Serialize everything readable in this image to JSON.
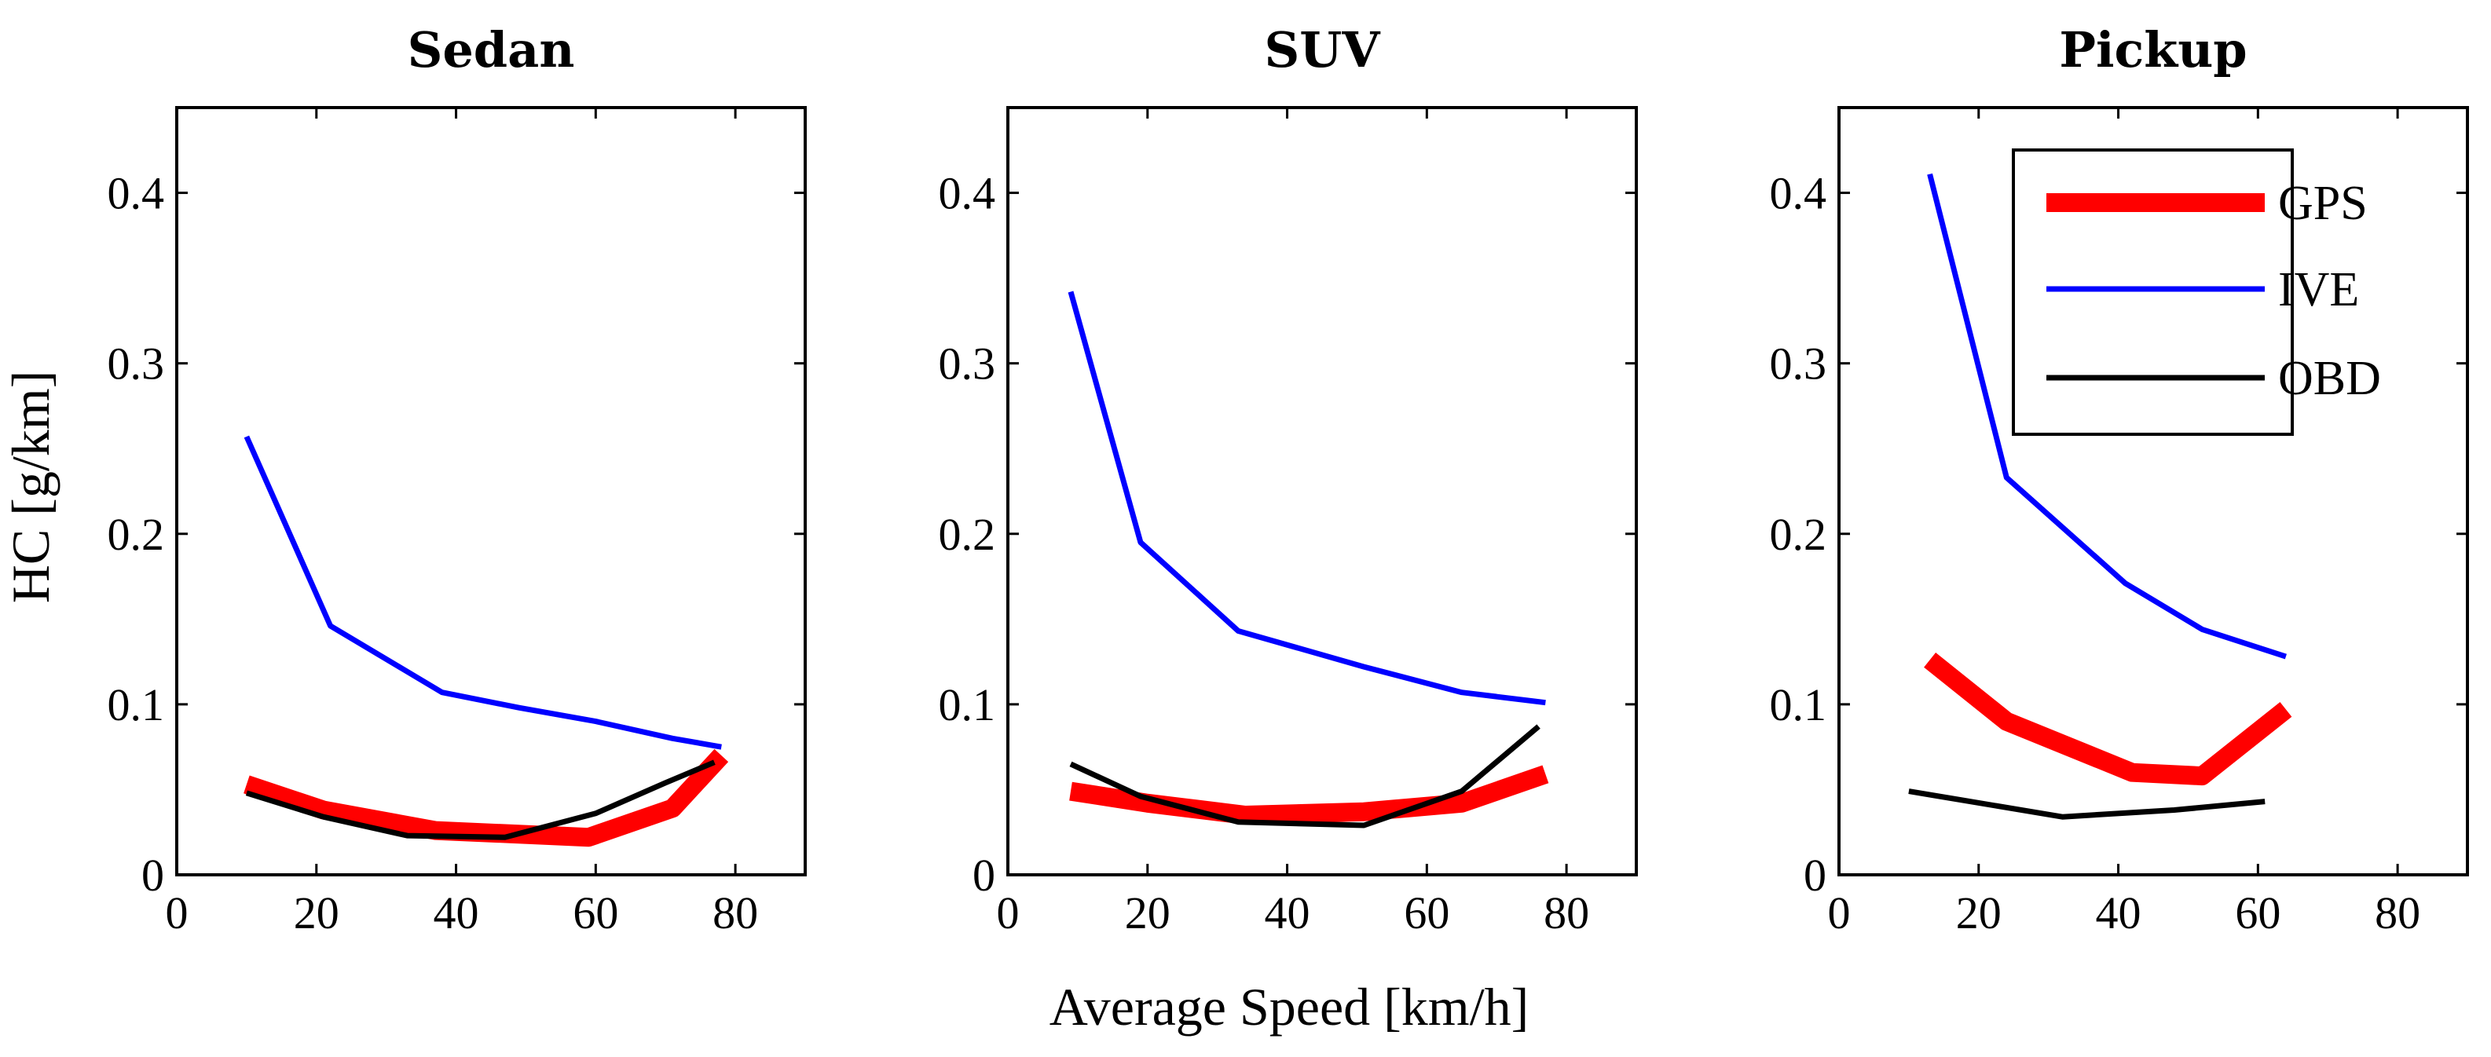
{
  "figure": {
    "xlabel": "Average Speed [km/h]",
    "ylabel": "HC [g/km]"
  },
  "legend": {
    "placement": "top-right of third panel",
    "entries": [
      {
        "label": "GPS",
        "color": "#ff0000"
      },
      {
        "label": "IVE",
        "color": "#0000ff"
      },
      {
        "label": "OBD",
        "color": "#000000"
      }
    ]
  },
  "chart_data": [
    {
      "type": "line",
      "title": "Sedan",
      "xlim": [
        0,
        90
      ],
      "ylim": [
        0,
        0.45
      ],
      "xticks": [
        0,
        20,
        40,
        60,
        80
      ],
      "yticks": [
        0,
        0.1,
        0.2,
        0.3,
        0.4
      ],
      "ytick_labels": [
        "0",
        "0.1",
        "0.2",
        "0.3",
        "0.4"
      ],
      "grid": false,
      "series": [
        {
          "name": "GPS",
          "color": "#ff0000",
          "x": [
            10,
            21,
            37,
            48,
            59,
            71,
            78
          ],
          "y": [
            0.053,
            0.038,
            0.026,
            0.024,
            0.022,
            0.039,
            0.07
          ]
        },
        {
          "name": "IVE",
          "color": "#0000ff",
          "x": [
            10,
            22,
            38,
            49,
            60,
            71,
            78
          ],
          "y": [
            0.257,
            0.146,
            0.107,
            0.098,
            0.09,
            0.08,
            0.075
          ]
        },
        {
          "name": "OBD",
          "color": "#000000",
          "x": [
            10,
            21,
            33,
            47,
            60,
            70,
            77
          ],
          "y": [
            0.048,
            0.034,
            0.023,
            0.022,
            0.036,
            0.054,
            0.066
          ]
        }
      ]
    },
    {
      "type": "line",
      "title": "SUV",
      "xlim": [
        0,
        90
      ],
      "ylim": [
        0,
        0.45
      ],
      "xticks": [
        0,
        20,
        40,
        60,
        80
      ],
      "yticks": [
        0,
        0.1,
        0.2,
        0.3,
        0.4
      ],
      "ytick_labels": [
        "0",
        "0.1",
        "0.2",
        "0.3",
        "0.4"
      ],
      "grid": false,
      "series": [
        {
          "name": "GPS",
          "color": "#ff0000",
          "x": [
            9,
            20,
            34,
            51,
            65,
            77
          ],
          "y": [
            0.049,
            0.042,
            0.035,
            0.037,
            0.042,
            0.059
          ]
        },
        {
          "name": "IVE",
          "color": "#0000ff",
          "x": [
            9,
            19,
            33,
            51,
            65,
            77
          ],
          "y": [
            0.342,
            0.195,
            0.143,
            0.122,
            0.107,
            0.101
          ]
        },
        {
          "name": "OBD",
          "color": "#000000",
          "x": [
            9,
            19,
            33,
            51,
            65,
            76
          ],
          "y": [
            0.065,
            0.046,
            0.031,
            0.029,
            0.049,
            0.087
          ]
        }
      ]
    },
    {
      "type": "line",
      "title": "Pickup",
      "xlim": [
        0,
        90
      ],
      "ylim": [
        0,
        0.45
      ],
      "xticks": [
        0,
        20,
        40,
        60,
        80
      ],
      "yticks": [
        0,
        0.1,
        0.2,
        0.3,
        0.4
      ],
      "ytick_labels": [
        "0",
        "0.1",
        "0.2",
        "0.3",
        "0.4"
      ],
      "grid": false,
      "series": [
        {
          "name": "GPS",
          "color": "#ff0000",
          "x": [
            13,
            24,
            42,
            52,
            64
          ],
          "y": [
            0.126,
            0.09,
            0.06,
            0.058,
            0.097
          ]
        },
        {
          "name": "IVE",
          "color": "#0000ff",
          "x": [
            13,
            24,
            41,
            52,
            64
          ],
          "y": [
            0.411,
            0.233,
            0.171,
            0.144,
            0.128
          ]
        },
        {
          "name": "OBD",
          "color": "#000000",
          "x": [
            10,
            32,
            48,
            61
          ],
          "y": [
            0.049,
            0.034,
            0.038,
            0.043
          ]
        }
      ]
    }
  ]
}
